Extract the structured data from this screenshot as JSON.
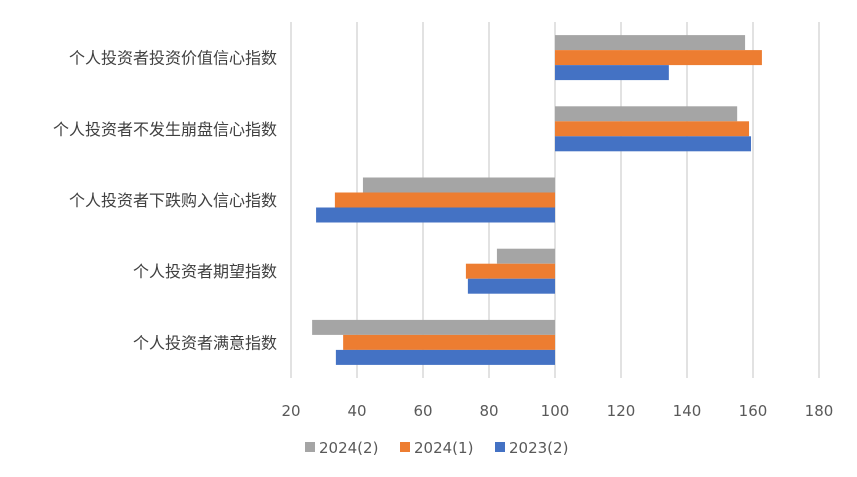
{
  "chart_data": {
    "type": "bar",
    "orientation": "horizontal",
    "baseline": 100,
    "categories": [
      "个人投资者投资价值信心指数",
      "个人投资者不发生崩盘信心指数",
      "个人投资者下跌购入信心指数",
      "个人投资者期望指数",
      "个人投资者满意指数"
    ],
    "series": [
      {
        "name": "2024(2)",
        "color": "#A5A5A5",
        "values": [
          157.6,
          155.2,
          41.8,
          82.4,
          26.4
        ]
      },
      {
        "name": "2024(1)",
        "color": "#ED7D31",
        "values": [
          162.7,
          158.8,
          33.3,
          73.0,
          35.8
        ]
      },
      {
        "name": "2023(2)",
        "color": "#4472C4",
        "values": [
          134.5,
          159.4,
          27.6,
          73.6,
          33.6
        ]
      }
    ],
    "xlim": [
      20,
      180
    ],
    "xticks": [
      "20",
      "40",
      "60",
      "80",
      "100",
      "120",
      "140",
      "160",
      "180"
    ],
    "grid": true,
    "legend": "bottom",
    "title": "",
    "xlabel": "",
    "ylabel": ""
  }
}
